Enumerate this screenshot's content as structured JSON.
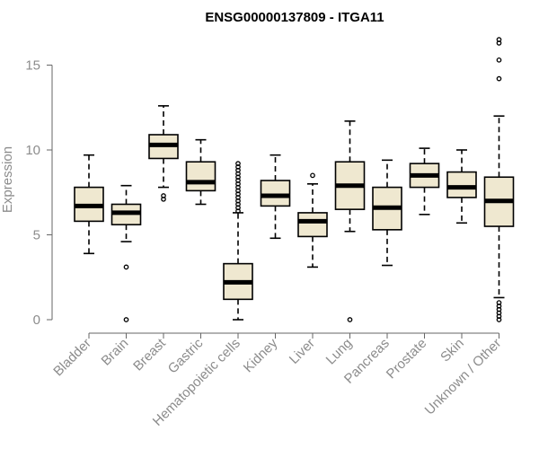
{
  "chart_data": {
    "type": "boxplot",
    "title": "ENSG00000137809 - ITGA11",
    "xlabel": "",
    "ylabel": "Expression",
    "ylim": [
      0,
      16.5
    ],
    "yticks": [
      0,
      5,
      10,
      15
    ],
    "grid": false,
    "colors": {
      "box_fill": "#efe8d0",
      "stroke": "#000000",
      "axis_text": "#8c8c8c"
    },
    "categories": [
      "Bladder",
      "Brain",
      "Breast",
      "Gastric",
      "Hematopoietic cells",
      "Kidney",
      "Liver",
      "Lung",
      "Pancreas",
      "Prostate",
      "Skin",
      "Unknown / Other"
    ],
    "boxes": [
      {
        "name": "Bladder",
        "whisker_low": 3.9,
        "q1": 5.8,
        "median": 6.7,
        "q3": 7.8,
        "whisker_high": 9.7,
        "outliers": []
      },
      {
        "name": "Brain",
        "whisker_low": 4.6,
        "q1": 5.6,
        "median": 6.3,
        "q3": 6.8,
        "whisker_high": 7.9,
        "outliers": [
          3.1,
          0.0
        ]
      },
      {
        "name": "Breast",
        "whisker_low": 7.8,
        "q1": 9.5,
        "median": 10.3,
        "q3": 10.9,
        "whisker_high": 12.6,
        "outliers": [
          7.1,
          7.3
        ]
      },
      {
        "name": "Gastric",
        "whisker_low": 6.8,
        "q1": 7.6,
        "median": 8.1,
        "q3": 9.3,
        "whisker_high": 10.6,
        "outliers": []
      },
      {
        "name": "Hematopoietic cells",
        "whisker_low": 0.0,
        "q1": 1.2,
        "median": 2.2,
        "q3": 3.3,
        "whisker_high": 6.3,
        "outliers": [
          6.4,
          6.6,
          6.8,
          7.0,
          7.2,
          7.4,
          7.6,
          7.8,
          8.0,
          8.2,
          8.4,
          8.6,
          8.8,
          9.0,
          9.2
        ]
      },
      {
        "name": "Kidney",
        "whisker_low": 4.8,
        "q1": 6.7,
        "median": 7.3,
        "q3": 8.2,
        "whisker_high": 9.7,
        "outliers": []
      },
      {
        "name": "Liver",
        "whisker_low": 3.1,
        "q1": 4.9,
        "median": 5.8,
        "q3": 6.3,
        "whisker_high": 8.0,
        "outliers": [
          8.5
        ]
      },
      {
        "name": "Lung",
        "whisker_low": 5.2,
        "q1": 6.5,
        "median": 7.9,
        "q3": 9.3,
        "whisker_high": 11.7,
        "outliers": [
          0.0
        ]
      },
      {
        "name": "Pancreas",
        "whisker_low": 3.2,
        "q1": 5.3,
        "median": 6.6,
        "q3": 7.8,
        "whisker_high": 9.4,
        "outliers": []
      },
      {
        "name": "Prostate",
        "whisker_low": 6.2,
        "q1": 7.8,
        "median": 8.5,
        "q3": 9.2,
        "whisker_high": 10.1,
        "outliers": []
      },
      {
        "name": "Skin",
        "whisker_low": 5.7,
        "q1": 7.2,
        "median": 7.8,
        "q3": 8.7,
        "whisker_high": 10.0,
        "outliers": []
      },
      {
        "name": "Unknown / Other",
        "whisker_low": 1.3,
        "q1": 5.5,
        "median": 7.0,
        "q3": 8.4,
        "whisker_high": 12.0,
        "outliers": [
          0.0,
          0.2,
          0.4,
          0.6,
          0.8,
          1.0,
          14.2,
          15.3,
          16.3,
          16.5
        ]
      }
    ]
  }
}
